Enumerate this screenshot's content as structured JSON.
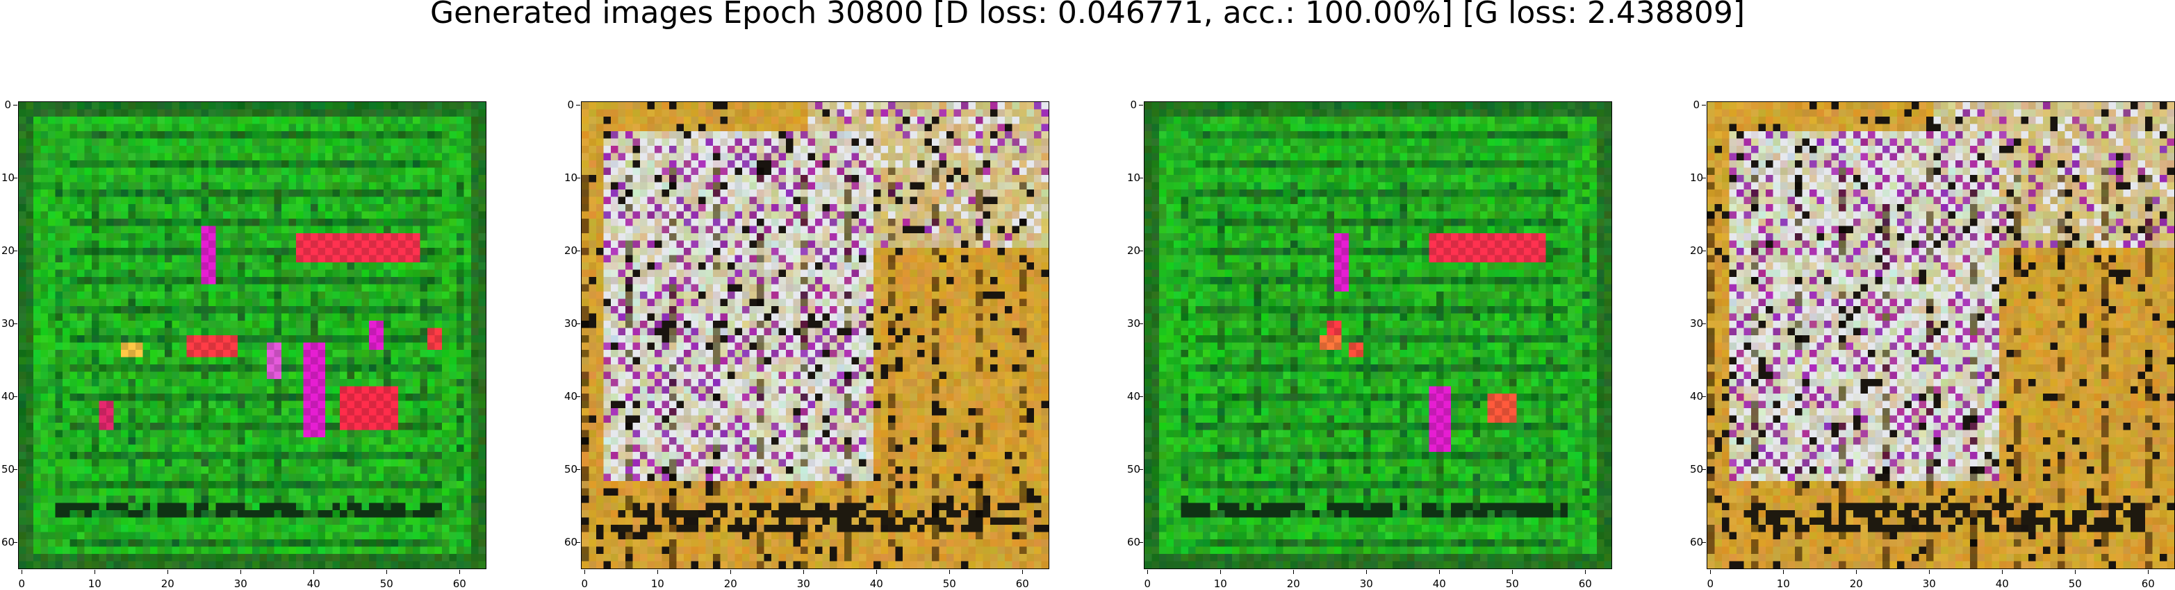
{
  "figure": {
    "title": "Generated images Epoch 30800 [D loss: 0.046771, acc.: 100.00%] [G loss: 2.438809]"
  },
  "panels": [
    {
      "name": "image-1",
      "theme": "green",
      "base_color": "#1a9a1f",
      "accent_colors": [
        "#ff2d55",
        "#ff3c96",
        "#e01adf",
        "#ffd84a"
      ]
    },
    {
      "name": "image-2",
      "theme": "tan",
      "base_color": "#c8961d",
      "accent_colors": [
        "#e6dbe3",
        "#8a1c8d",
        "#1d1d1d",
        "#6a5b3a"
      ]
    },
    {
      "name": "image-3",
      "theme": "green",
      "base_color": "#1a9a1f",
      "accent_colors": [
        "#ff2d55",
        "#ff3c96",
        "#e01adf",
        "#ffd84a"
      ]
    },
    {
      "name": "image-4",
      "theme": "tan",
      "base_color": "#c8961d",
      "accent_colors": [
        "#e6dbe3",
        "#8a1c8d",
        "#1d1d1d",
        "#6a5b3a"
      ]
    }
  ],
  "axes": {
    "xticks": [
      "0",
      "10",
      "20",
      "30",
      "40",
      "50",
      "60"
    ],
    "yticks": [
      "0",
      "10",
      "20",
      "30",
      "40",
      "50",
      "60"
    ],
    "xlim": [
      -0.5,
      63.5
    ],
    "ylim": [
      63.5,
      -0.5
    ]
  }
}
